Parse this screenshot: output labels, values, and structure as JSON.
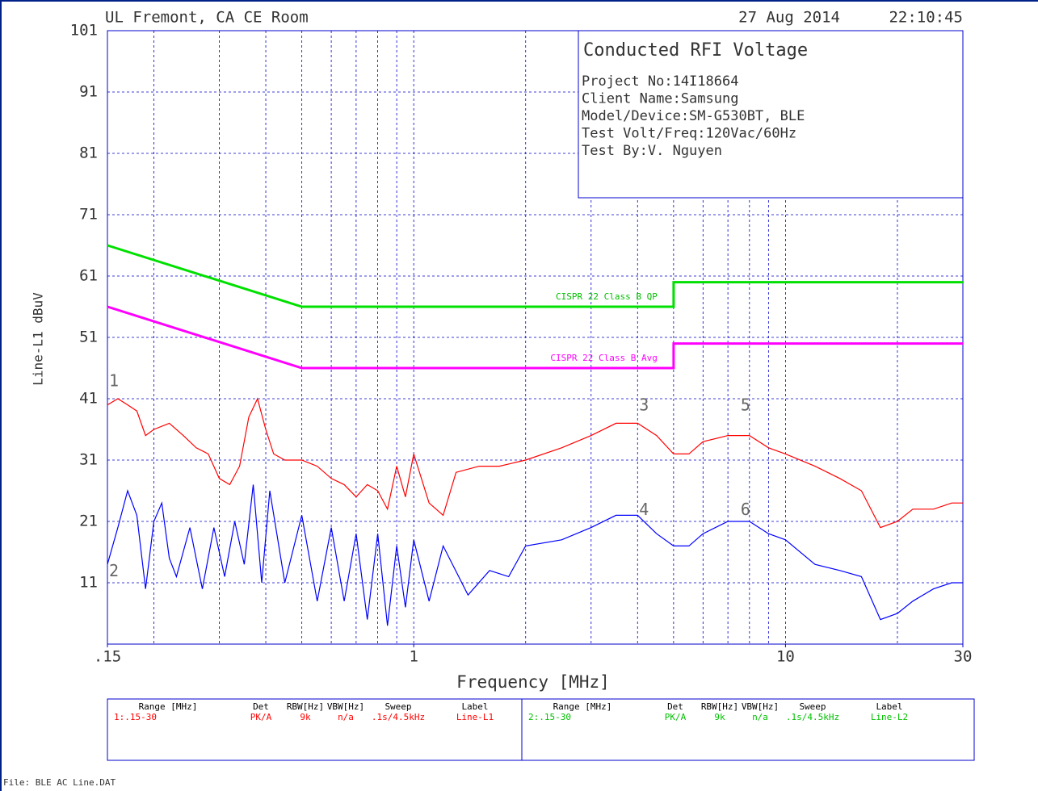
{
  "header": {
    "site": "UL Fremont, CA CE Room",
    "date": "27 Aug 2014",
    "time": "22:10:45"
  },
  "info_box": {
    "title": "Conducted RFI Voltage",
    "lines": [
      "Project No:14I18664",
      "Client Name:Samsung",
      "Model/Device:SM-G530BT, BLE",
      "Test Volt/Freq:120Vac/60Hz",
      "Test By:V. Nguyen"
    ]
  },
  "chart_data": {
    "type": "line",
    "xlabel": "Frequency [MHz]",
    "ylabel": "Line-L1 dBuV",
    "log_x": true,
    "grid": true,
    "xlim": [
      0.15,
      30
    ],
    "ylim": [
      1,
      101
    ],
    "xticks": [
      {
        "value": 0.15,
        "label": ".15"
      },
      1,
      10,
      30
    ],
    "xgrid": [
      0.2,
      0.3,
      0.4,
      0.5,
      0.6,
      0.7,
      0.8,
      0.9,
      1,
      2,
      3,
      4,
      5,
      6,
      7,
      8,
      9,
      10,
      20,
      30
    ],
    "yticks": [
      11,
      21,
      31,
      41,
      51,
      61,
      71,
      81,
      91,
      101
    ],
    "series": [
      {
        "name": "CISPR 22 Class B QP",
        "color": "#00e000",
        "label_color": "#00c000",
        "x": [
          0.15,
          0.5,
          5,
          5,
          30
        ],
        "values": [
          66,
          56,
          56,
          60,
          60
        ]
      },
      {
        "name": "CISPR 22 Class B Avg",
        "color": "#ff00ff",
        "label_color": "#ff00ff",
        "x": [
          0.15,
          0.5,
          5,
          5,
          30
        ],
        "values": [
          56,
          46,
          46,
          50,
          50
        ]
      },
      {
        "color": "#ff0000",
        "x": [
          0.15,
          0.16,
          0.17,
          0.18,
          0.19,
          0.2,
          0.22,
          0.24,
          0.26,
          0.28,
          0.3,
          0.32,
          0.34,
          0.36,
          0.38,
          0.4,
          0.42,
          0.45,
          0.5,
          0.55,
          0.6,
          0.65,
          0.7,
          0.75,
          0.8,
          0.85,
          0.9,
          0.95,
          1.0,
          1.1,
          1.2,
          1.3,
          1.5,
          1.7,
          2.0,
          2.5,
          3.0,
          3.5,
          4.0,
          4.5,
          5.0,
          5.5,
          6.0,
          7.0,
          8.0,
          9.0,
          10,
          12,
          14,
          16,
          18,
          20,
          22,
          25,
          28,
          30
        ],
        "values": [
          40,
          41,
          40,
          39,
          35,
          36,
          37,
          35,
          33,
          32,
          28,
          27,
          30,
          38,
          41,
          36,
          32,
          31,
          31,
          30,
          28,
          27,
          25,
          27,
          26,
          23,
          30,
          25,
          32,
          24,
          22,
          29,
          30,
          30,
          31,
          33,
          35,
          37,
          37,
          35,
          32,
          32,
          34,
          35,
          35,
          33,
          32,
          30,
          28,
          26,
          20,
          21,
          23,
          23,
          24,
          24
        ]
      },
      {
        "color": "#0000ff",
        "x": [
          0.15,
          0.16,
          0.17,
          0.18,
          0.19,
          0.2,
          0.21,
          0.22,
          0.23,
          0.25,
          0.27,
          0.29,
          0.31,
          0.33,
          0.35,
          0.37,
          0.39,
          0.41,
          0.45,
          0.5,
          0.55,
          0.6,
          0.65,
          0.7,
          0.75,
          0.8,
          0.85,
          0.9,
          0.95,
          1.0,
          1.1,
          1.2,
          1.4,
          1.6,
          1.8,
          2.0,
          2.5,
          3.0,
          3.5,
          4.0,
          4.5,
          5.0,
          5.5,
          6.0,
          7.0,
          8.0,
          9.0,
          10,
          12,
          14,
          16,
          18,
          20,
          22,
          25,
          28,
          30
        ],
        "values": [
          14,
          20,
          26,
          22,
          10,
          21,
          24,
          15,
          12,
          20,
          10,
          20,
          12,
          21,
          14,
          27,
          11,
          26,
          11,
          22,
          8,
          20,
          8,
          19,
          5,
          19,
          4,
          17,
          7,
          18,
          8,
          17,
          9,
          13,
          12,
          17,
          18,
          20,
          22,
          22,
          19,
          17,
          17,
          19,
          21,
          21,
          19,
          18,
          14,
          13,
          12,
          5,
          6,
          8,
          10,
          11,
          11
        ]
      }
    ],
    "markers": [
      {
        "label": "1",
        "x": 0.15,
        "y": 43
      },
      {
        "label": "2",
        "x": 0.15,
        "y": 12
      },
      {
        "label": "3",
        "x": 4.0,
        "y": 39
      },
      {
        "label": "4",
        "x": 4.0,
        "y": 22
      },
      {
        "label": "5",
        "x": 7.5,
        "y": 39
      },
      {
        "label": "6",
        "x": 7.5,
        "y": 22
      }
    ]
  },
  "settings_table": {
    "headers": [
      "Range [MHz]",
      "Det",
      "RBW[Hz]",
      "VBW[Hz]",
      "Sweep",
      "Label"
    ],
    "rows": [
      [
        "1:.15-30",
        "PK/A",
        "9k",
        "n/a",
        ".1s/4.5kHz",
        "Line-L1"
      ],
      [
        "2:.15-30",
        "PK/A",
        "9k",
        "n/a",
        ".1s/4.5kHz",
        "Line-L2"
      ]
    ]
  },
  "footer": "File: BLE AC Line.DAT"
}
